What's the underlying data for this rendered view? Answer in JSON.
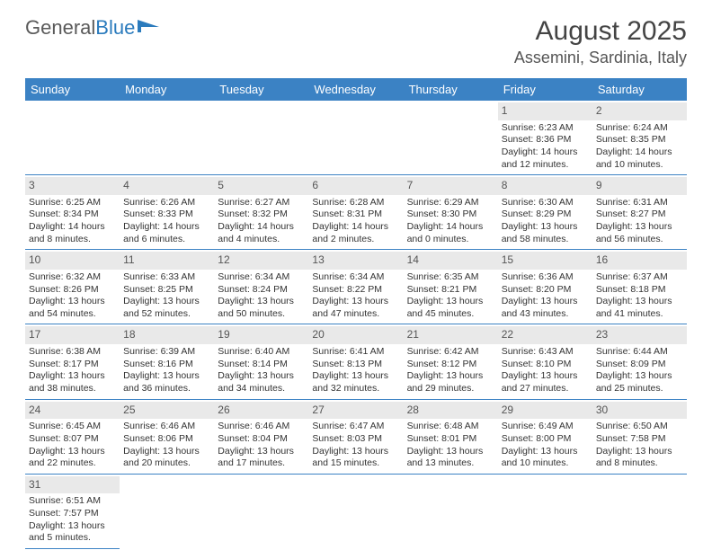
{
  "brand": {
    "part1": "General",
    "part2": "Blue"
  },
  "title": {
    "month_year": "August 2025",
    "location": "Assemini, Sardinia, Italy"
  },
  "colors": {
    "header_blue": "#3b82c4",
    "rule_blue": "#3b82c4",
    "daybar": "#e9e9e9",
    "text": "#333333"
  },
  "day_names": [
    "Sunday",
    "Monday",
    "Tuesday",
    "Wednesday",
    "Thursday",
    "Friday",
    "Saturday"
  ],
  "first_weekday": 5,
  "num_days": 31,
  "days": {
    "1": {
      "sunrise": "6:23 AM",
      "sunset": "8:36 PM",
      "daylight": "14 hours and 12 minutes."
    },
    "2": {
      "sunrise": "6:24 AM",
      "sunset": "8:35 PM",
      "daylight": "14 hours and 10 minutes."
    },
    "3": {
      "sunrise": "6:25 AM",
      "sunset": "8:34 PM",
      "daylight": "14 hours and 8 minutes."
    },
    "4": {
      "sunrise": "6:26 AM",
      "sunset": "8:33 PM",
      "daylight": "14 hours and 6 minutes."
    },
    "5": {
      "sunrise": "6:27 AM",
      "sunset": "8:32 PM",
      "daylight": "14 hours and 4 minutes."
    },
    "6": {
      "sunrise": "6:28 AM",
      "sunset": "8:31 PM",
      "daylight": "14 hours and 2 minutes."
    },
    "7": {
      "sunrise": "6:29 AM",
      "sunset": "8:30 PM",
      "daylight": "14 hours and 0 minutes."
    },
    "8": {
      "sunrise": "6:30 AM",
      "sunset": "8:29 PM",
      "daylight": "13 hours and 58 minutes."
    },
    "9": {
      "sunrise": "6:31 AM",
      "sunset": "8:27 PM",
      "daylight": "13 hours and 56 minutes."
    },
    "10": {
      "sunrise": "6:32 AM",
      "sunset": "8:26 PM",
      "daylight": "13 hours and 54 minutes."
    },
    "11": {
      "sunrise": "6:33 AM",
      "sunset": "8:25 PM",
      "daylight": "13 hours and 52 minutes."
    },
    "12": {
      "sunrise": "6:34 AM",
      "sunset": "8:24 PM",
      "daylight": "13 hours and 50 minutes."
    },
    "13": {
      "sunrise": "6:34 AM",
      "sunset": "8:22 PM",
      "daylight": "13 hours and 47 minutes."
    },
    "14": {
      "sunrise": "6:35 AM",
      "sunset": "8:21 PM",
      "daylight": "13 hours and 45 minutes."
    },
    "15": {
      "sunrise": "6:36 AM",
      "sunset": "8:20 PM",
      "daylight": "13 hours and 43 minutes."
    },
    "16": {
      "sunrise": "6:37 AM",
      "sunset": "8:18 PM",
      "daylight": "13 hours and 41 minutes."
    },
    "17": {
      "sunrise": "6:38 AM",
      "sunset": "8:17 PM",
      "daylight": "13 hours and 38 minutes."
    },
    "18": {
      "sunrise": "6:39 AM",
      "sunset": "8:16 PM",
      "daylight": "13 hours and 36 minutes."
    },
    "19": {
      "sunrise": "6:40 AM",
      "sunset": "8:14 PM",
      "daylight": "13 hours and 34 minutes."
    },
    "20": {
      "sunrise": "6:41 AM",
      "sunset": "8:13 PM",
      "daylight": "13 hours and 32 minutes."
    },
    "21": {
      "sunrise": "6:42 AM",
      "sunset": "8:12 PM",
      "daylight": "13 hours and 29 minutes."
    },
    "22": {
      "sunrise": "6:43 AM",
      "sunset": "8:10 PM",
      "daylight": "13 hours and 27 minutes."
    },
    "23": {
      "sunrise": "6:44 AM",
      "sunset": "8:09 PM",
      "daylight": "13 hours and 25 minutes."
    },
    "24": {
      "sunrise": "6:45 AM",
      "sunset": "8:07 PM",
      "daylight": "13 hours and 22 minutes."
    },
    "25": {
      "sunrise": "6:46 AM",
      "sunset": "8:06 PM",
      "daylight": "13 hours and 20 minutes."
    },
    "26": {
      "sunrise": "6:46 AM",
      "sunset": "8:04 PM",
      "daylight": "13 hours and 17 minutes."
    },
    "27": {
      "sunrise": "6:47 AM",
      "sunset": "8:03 PM",
      "daylight": "13 hours and 15 minutes."
    },
    "28": {
      "sunrise": "6:48 AM",
      "sunset": "8:01 PM",
      "daylight": "13 hours and 13 minutes."
    },
    "29": {
      "sunrise": "6:49 AM",
      "sunset": "8:00 PM",
      "daylight": "13 hours and 10 minutes."
    },
    "30": {
      "sunrise": "6:50 AM",
      "sunset": "7:58 PM",
      "daylight": "13 hours and 8 minutes."
    },
    "31": {
      "sunrise": "6:51 AM",
      "sunset": "7:57 PM",
      "daylight": "13 hours and 5 minutes."
    }
  },
  "labels": {
    "sunrise": "Sunrise:",
    "sunset": "Sunset:",
    "daylight": "Daylight:"
  }
}
